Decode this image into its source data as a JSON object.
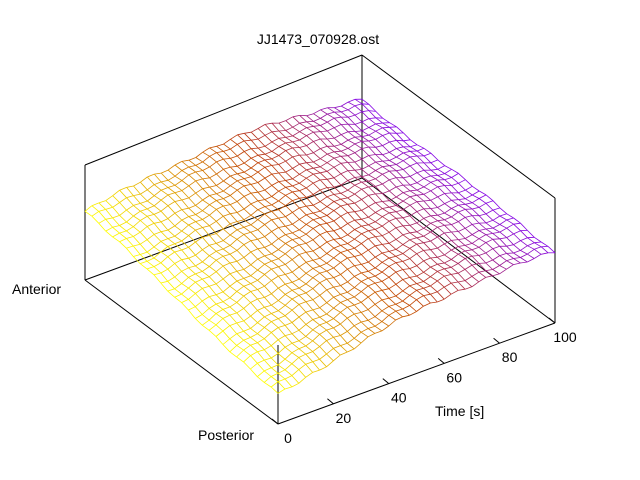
{
  "chart_data": {
    "type": "surface-3d",
    "title": "JJ1473_070928.ost",
    "time_axis": {
      "label": "Time [s]",
      "range": [
        0,
        100
      ],
      "ticks": [
        "0",
        "20",
        "40",
        "60",
        "80",
        "100"
      ]
    },
    "position_axis": {
      "labels": [
        "Anterior",
        "Posterior"
      ]
    },
    "colormap": [
      "#ffff00",
      "#c04000",
      "#8000ff"
    ],
    "surface": {
      "time": [
        0,
        5,
        10,
        15,
        20,
        25,
        30,
        35,
        40,
        45,
        50,
        55,
        60,
        65,
        70,
        75,
        80,
        85,
        90,
        95,
        100
      ],
      "position": [
        0,
        0.125,
        0.25,
        0.375,
        0.5,
        0.625,
        0.75,
        0.875,
        1
      ],
      "z_at_time_0_anterior_to_posterior": [
        0.2,
        0.16,
        0.12,
        0.08,
        0.04,
        0.01,
        -0.02,
        -0.04,
        -0.05
      ],
      "z_at_time_100_anterior_to_posterior": [
        0.6,
        0.58,
        0.56,
        0.54,
        0.52,
        0.5,
        0.48,
        0.47,
        0.47
      ],
      "description_values_normalized": {
        "anterior_level": 0.2,
        "posterior_rise": 0.55
      }
    }
  }
}
